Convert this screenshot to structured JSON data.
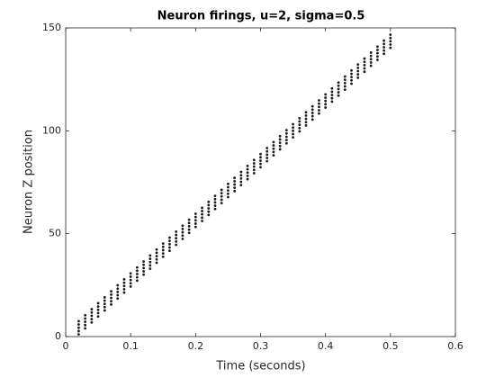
{
  "chart_data": {
    "type": "scatter",
    "title": "Neuron firings, u=2, sigma=0.5",
    "x_label": "Time (seconds)",
    "y_label": "Neuron Z position",
    "xlim": [
      0,
      0.6
    ],
    "ylim": [
      0,
      150
    ],
    "xticks": [
      0,
      0.1,
      0.2,
      0.3,
      0.4,
      0.5,
      0.6
    ],
    "yticks": [
      0,
      50,
      100,
      150
    ],
    "color": "#1a1a1a",
    "grid": false,
    "x": [
      0.02,
      0.02,
      0.02,
      0.02,
      0.02,
      0.03,
      0.03,
      0.03,
      0.03,
      0.03,
      0.04,
      0.04,
      0.04,
      0.04,
      0.04,
      0.05,
      0.05,
      0.05,
      0.05,
      0.05,
      0.06,
      0.06,
      0.06,
      0.06,
      0.06,
      0.07,
      0.07,
      0.07,
      0.07,
      0.07,
      0.08,
      0.08,
      0.08,
      0.08,
      0.08,
      0.09,
      0.09,
      0.09,
      0.09,
      0.09,
      0.1,
      0.1,
      0.1,
      0.1,
      0.1,
      0.11,
      0.11,
      0.11,
      0.11,
      0.11,
      0.12,
      0.12,
      0.12,
      0.12,
      0.12,
      0.13,
      0.13,
      0.13,
      0.13,
      0.13,
      0.14,
      0.14,
      0.14,
      0.14,
      0.14,
      0.15,
      0.15,
      0.15,
      0.15,
      0.15,
      0.16,
      0.16,
      0.16,
      0.16,
      0.16,
      0.17,
      0.17,
      0.17,
      0.17,
      0.17,
      0.18,
      0.18,
      0.18,
      0.18,
      0.18,
      0.19,
      0.19,
      0.19,
      0.19,
      0.19,
      0.2,
      0.2,
      0.2,
      0.2,
      0.2,
      0.21,
      0.21,
      0.21,
      0.21,
      0.21,
      0.22,
      0.22,
      0.22,
      0.22,
      0.22,
      0.23,
      0.23,
      0.23,
      0.23,
      0.23,
      0.24,
      0.24,
      0.24,
      0.24,
      0.24,
      0.25,
      0.25,
      0.25,
      0.25,
      0.25,
      0.26,
      0.26,
      0.26,
      0.26,
      0.26,
      0.27,
      0.27,
      0.27,
      0.27,
      0.27,
      0.28,
      0.28,
      0.28,
      0.28,
      0.28,
      0.29,
      0.29,
      0.29,
      0.29,
      0.29,
      0.3,
      0.3,
      0.3,
      0.3,
      0.3,
      0.31,
      0.31,
      0.31,
      0.31,
      0.31,
      0.32,
      0.32,
      0.32,
      0.32,
      0.32,
      0.33,
      0.33,
      0.33,
      0.33,
      0.33,
      0.34,
      0.34,
      0.34,
      0.34,
      0.34,
      0.35,
      0.35,
      0.35,
      0.35,
      0.35,
      0.36,
      0.36,
      0.36,
      0.36,
      0.36,
      0.37,
      0.37,
      0.37,
      0.37,
      0.37,
      0.38,
      0.38,
      0.38,
      0.38,
      0.38,
      0.39,
      0.39,
      0.39,
      0.39,
      0.39,
      0.4,
      0.4,
      0.4,
      0.4,
      0.4,
      0.41,
      0.41,
      0.41,
      0.41,
      0.41,
      0.42,
      0.42,
      0.42,
      0.42,
      0.42,
      0.43,
      0.43,
      0.43,
      0.43,
      0.43,
      0.44,
      0.44,
      0.44,
      0.44,
      0.44,
      0.45,
      0.45,
      0.45,
      0.45,
      0.45,
      0.46,
      0.46,
      0.46,
      0.46,
      0.46,
      0.47,
      0.47,
      0.47,
      0.47,
      0.47,
      0.48,
      0.48,
      0.48,
      0.48,
      0.48,
      0.49,
      0.49,
      0.49,
      0.49,
      0.49,
      0.5,
      0.5,
      0.5,
      0.5,
      0.5
    ],
    "values": [
      1.1,
      2.7,
      4.3,
      5.9,
      7.5,
      4.0,
      5.6,
      7.2,
      8.8,
      10.4,
      6.9,
      8.5,
      10.1,
      11.7,
      13.3,
      9.8,
      11.4,
      13.0,
      14.6,
      16.2,
      12.7,
      14.3,
      15.9,
      17.5,
      19.1,
      15.6,
      17.2,
      18.8,
      20.4,
      22.0,
      18.5,
      20.1,
      21.7,
      23.3,
      24.9,
      21.4,
      23.0,
      24.6,
      26.2,
      27.8,
      24.3,
      25.9,
      27.5,
      29.1,
      30.7,
      27.2,
      28.8,
      30.4,
      32.0,
      33.6,
      30.1,
      31.7,
      33.3,
      34.9,
      36.5,
      33.0,
      34.6,
      36.2,
      37.8,
      39.4,
      35.9,
      37.5,
      39.1,
      40.7,
      42.3,
      38.8,
      40.4,
      42.0,
      43.6,
      45.2,
      41.7,
      43.3,
      44.9,
      46.5,
      48.1,
      44.6,
      46.2,
      47.8,
      49.4,
      51.0,
      47.5,
      49.1,
      50.7,
      52.3,
      53.9,
      50.4,
      52.0,
      53.6,
      55.2,
      56.8,
      53.3,
      54.9,
      56.5,
      58.1,
      59.7,
      56.2,
      57.8,
      59.4,
      61.0,
      62.6,
      59.1,
      60.7,
      62.3,
      63.9,
      65.5,
      62.0,
      63.6,
      65.2,
      66.8,
      68.4,
      64.9,
      66.5,
      68.1,
      69.7,
      71.3,
      67.8,
      69.4,
      71.0,
      72.6,
      74.2,
      70.7,
      72.3,
      73.9,
      75.5,
      77.1,
      73.6,
      75.2,
      76.8,
      78.4,
      80.0,
      76.5,
      78.1,
      79.7,
      81.3,
      82.9,
      79.4,
      81.0,
      82.6,
      84.2,
      85.8,
      82.3,
      83.9,
      85.5,
      87.1,
      88.7,
      85.2,
      86.8,
      88.4,
      90.0,
      91.6,
      88.1,
      89.7,
      91.3,
      92.9,
      94.5,
      91.0,
      92.6,
      94.2,
      95.8,
      97.4,
      93.9,
      95.5,
      97.1,
      98.7,
      100.3,
      96.8,
      98.4,
      100.0,
      101.6,
      103.2,
      99.7,
      101.3,
      102.9,
      104.5,
      106.1,
      102.6,
      104.2,
      105.8,
      107.4,
      109.0,
      105.5,
      107.1,
      108.7,
      110.3,
      111.9,
      108.4,
      110.0,
      111.6,
      113.2,
      114.8,
      111.3,
      112.9,
      114.5,
      116.1,
      117.7,
      114.2,
      115.8,
      117.4,
      119.0,
      120.6,
      117.1,
      118.7,
      120.3,
      121.9,
      123.5,
      120.0,
      121.6,
      123.2,
      124.8,
      126.4,
      122.9,
      124.5,
      126.1,
      127.7,
      129.3,
      125.8,
      127.4,
      129.0,
      130.6,
      132.2,
      128.7,
      130.3,
      131.9,
      133.5,
      135.1,
      131.6,
      133.2,
      134.8,
      136.4,
      138.0,
      134.5,
      136.1,
      137.7,
      139.3,
      140.9,
      137.4,
      139.0,
      140.6,
      142.2,
      143.8,
      140.3,
      141.9,
      143.5,
      145.1,
      146.7
    ]
  }
}
